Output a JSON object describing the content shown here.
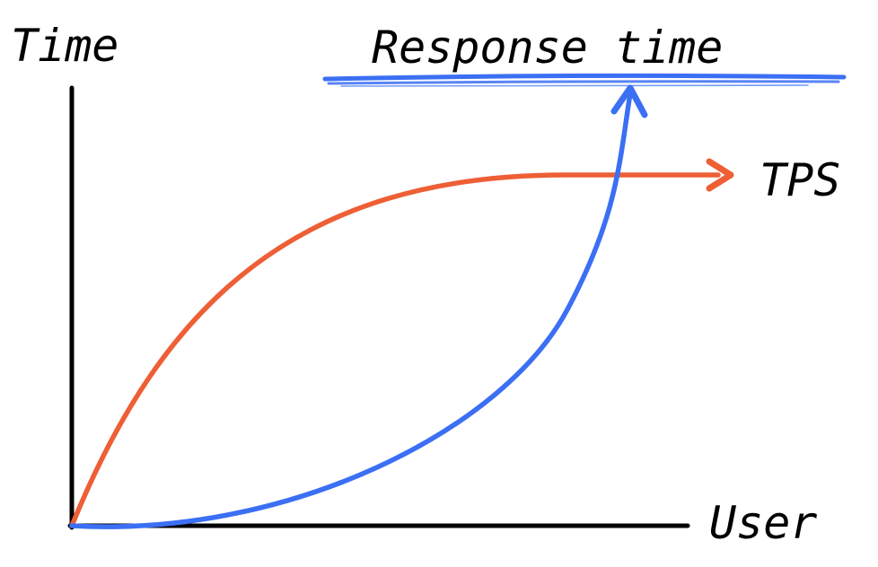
{
  "labels": {
    "y_axis": "Time",
    "x_axis": "User",
    "response_time": "Response time",
    "tps": "TPS"
  },
  "colors": {
    "axis": "#000000",
    "tps_curve": "#ee5f36",
    "response_time_curve": "#3b6ff4",
    "background": "#ffffff"
  }
}
